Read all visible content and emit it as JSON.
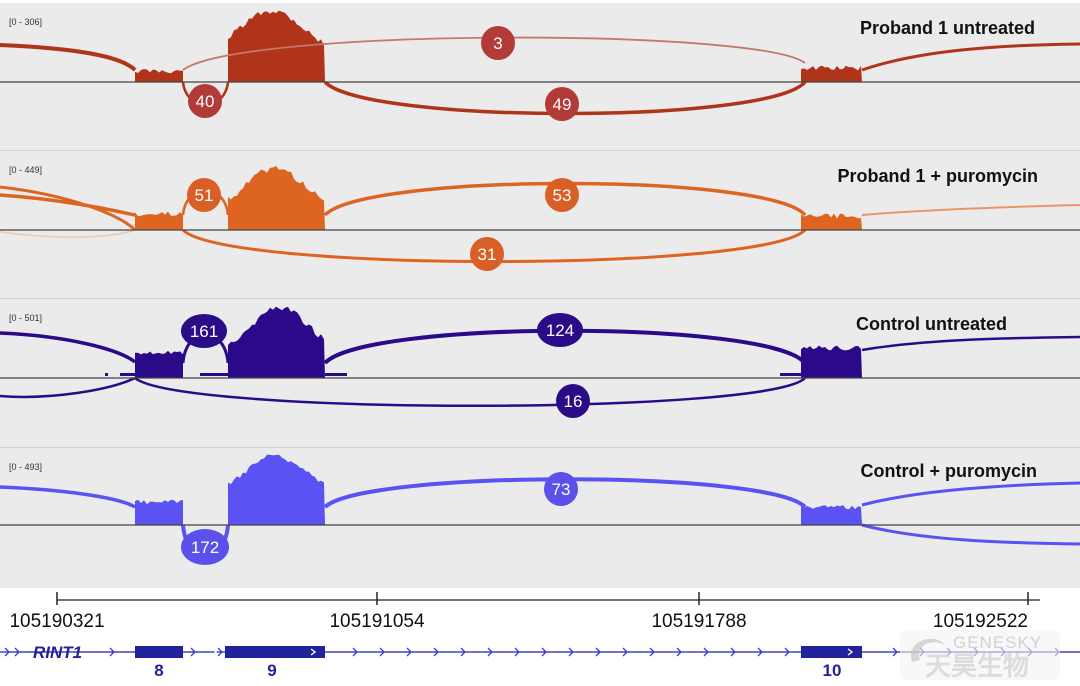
{
  "tracks": [
    {
      "title": "Proband 1 untreated",
      "range": "[0 - 306]",
      "color": "#b0341a",
      "node_color": "#b23a37",
      "junctions": [
        {
          "label": "3",
          "side": "above",
          "span": "exon8-exon10"
        },
        {
          "label": "40",
          "side": "below",
          "span": "exon8-exon9"
        },
        {
          "label": "49",
          "side": "below",
          "span": "exon9-exon10"
        }
      ]
    },
    {
      "title": "Proband 1 + puromycin",
      "range": "[0 - 449]",
      "color": "#de6422",
      "node_color": "#d85f26",
      "junctions": [
        {
          "label": "51",
          "side": "above",
          "span": "exon8-exon9"
        },
        {
          "label": "53",
          "side": "above",
          "span": "exon9-exon10"
        },
        {
          "label": "31",
          "side": "below",
          "span": "exon8-exon10"
        }
      ]
    },
    {
      "title": "Control untreated",
      "range": "[0 - 501]",
      "color": "#2b0a8a",
      "node_color": "#2a0c87",
      "junctions": [
        {
          "label": "161",
          "side": "above",
          "span": "exon8-exon9"
        },
        {
          "label": "124",
          "side": "above",
          "span": "exon9-exon10"
        },
        {
          "label": "16",
          "side": "below",
          "span": "exon8-exon10"
        }
      ]
    },
    {
      "title": "Control + puromycin",
      "range": "[0 - 493]",
      "color": "#5a52f2",
      "node_color": "#5b50ea",
      "junctions": [
        {
          "label": "73",
          "side": "above",
          "span": "exon9-exon10"
        },
        {
          "label": "172",
          "side": "below",
          "span": "exon8-exon9"
        }
      ]
    }
  ],
  "ruler": {
    "labels": [
      "105190321",
      "105191054",
      "105191788",
      "105192522"
    ]
  },
  "gene": {
    "name": "RINT1",
    "color": "#22229a",
    "exons": [
      {
        "label": "8"
      },
      {
        "label": "9"
      },
      {
        "label": "10"
      }
    ]
  },
  "watermark": {
    "en": "GENESKY",
    "cn": "天昊生物"
  }
}
